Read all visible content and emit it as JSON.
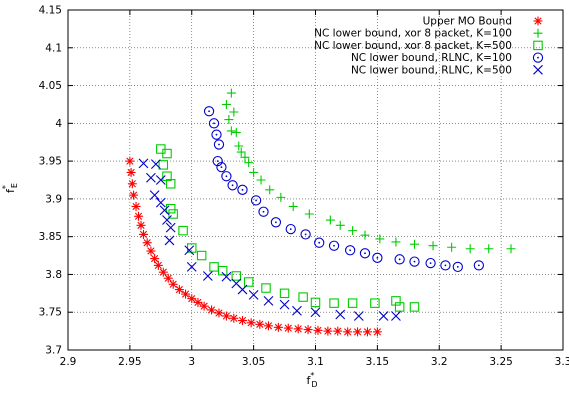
{
  "chart_data": {
    "type": "scatter",
    "xlabel": "f*D",
    "ylabel": "f*E",
    "xlabel_main": "f",
    "xlabel_sup": "*",
    "xlabel_sub": "D",
    "ylabel_main": "f",
    "ylabel_sup": "*",
    "ylabel_sub": "E",
    "xlim": [
      2.9,
      3.3
    ],
    "ylim": [
      3.7,
      4.15
    ],
    "xticks": [
      2.9,
      2.95,
      3.0,
      3.05,
      3.1,
      3.15,
      3.2,
      3.25,
      3.3
    ],
    "xtick_labels": [
      "2.9",
      "2.95",
      "3",
      "3.05",
      "3.1",
      "3.15",
      "3.2",
      "3.25",
      "3.3"
    ],
    "yticks": [
      3.7,
      3.75,
      3.8,
      3.85,
      3.9,
      3.95,
      4.0,
      4.05,
      4.1,
      4.15
    ],
    "ytick_labels": [
      "3.7",
      "3.75",
      "3.8",
      "3.85",
      "3.9",
      "3.95",
      "4",
      "4.05",
      "4.1",
      "4.15"
    ],
    "grid": true,
    "legend_position": "top-right",
    "series": [
      {
        "name": "Upper MO Bound",
        "marker": "asterisk",
        "color": "#ff0000",
        "points": [
          [
            2.95,
            3.95
          ],
          [
            2.951,
            3.935
          ],
          [
            2.952,
            3.92
          ],
          [
            2.953,
            3.905
          ],
          [
            2.955,
            3.89
          ],
          [
            2.957,
            3.877
          ],
          [
            2.959,
            3.865
          ],
          [
            2.961,
            3.853
          ],
          [
            2.964,
            3.842
          ],
          [
            2.967,
            3.831
          ],
          [
            2.97,
            3.821
          ],
          [
            2.973,
            3.812
          ],
          [
            2.977,
            3.803
          ],
          [
            2.981,
            3.795
          ],
          [
            2.985,
            3.787
          ],
          [
            2.99,
            3.78
          ],
          [
            2.995,
            3.774
          ],
          [
            3.0,
            3.768
          ],
          [
            3.005,
            3.763
          ],
          [
            3.01,
            3.758
          ],
          [
            3.016,
            3.753
          ],
          [
            3.022,
            3.749
          ],
          [
            3.028,
            3.745
          ],
          [
            3.034,
            3.742
          ],
          [
            3.041,
            3.739
          ],
          [
            3.048,
            3.736
          ],
          [
            3.055,
            3.734
          ],
          [
            3.062,
            3.732
          ],
          [
            3.07,
            3.73
          ],
          [
            3.078,
            3.729
          ],
          [
            3.086,
            3.728
          ],
          [
            3.094,
            3.727
          ],
          [
            3.102,
            3.726
          ],
          [
            3.11,
            3.725
          ],
          [
            3.118,
            3.725
          ],
          [
            3.126,
            3.724
          ],
          [
            3.134,
            3.724
          ],
          [
            3.142,
            3.724
          ],
          [
            3.15,
            3.724
          ]
        ]
      },
      {
        "name": "NC lower bound, xor 8 packet, K=100",
        "marker": "plus",
        "color": "#00cc00",
        "points": [
          [
            3.028,
            4.025
          ],
          [
            3.032,
            4.04
          ],
          [
            3.03,
            4.005
          ],
          [
            3.034,
            4.015
          ],
          [
            3.032,
            3.99
          ],
          [
            3.036,
            3.988
          ],
          [
            3.038,
            3.97
          ],
          [
            3.04,
            3.962
          ],
          [
            3.043,
            3.955
          ],
          [
            3.046,
            3.948
          ],
          [
            3.05,
            3.935
          ],
          [
            3.056,
            3.925
          ],
          [
            3.063,
            3.912
          ],
          [
            3.072,
            3.902
          ],
          [
            3.082,
            3.89
          ],
          [
            3.095,
            3.88
          ],
          [
            3.112,
            3.872
          ],
          [
            3.12,
            3.865
          ],
          [
            3.13,
            3.858
          ],
          [
            3.14,
            3.852
          ],
          [
            3.152,
            3.847
          ],
          [
            3.165,
            3.843
          ],
          [
            3.18,
            3.84
          ],
          [
            3.195,
            3.838
          ],
          [
            3.21,
            3.836
          ],
          [
            3.225,
            3.834
          ],
          [
            3.24,
            3.834
          ],
          [
            3.258,
            3.834
          ]
        ]
      },
      {
        "name": "NC lower bound, xor 8 packet, K=500",
        "marker": "square",
        "color": "#00cc00",
        "points": [
          [
            2.975,
            3.966
          ],
          [
            2.98,
            3.96
          ],
          [
            2.977,
            3.945
          ],
          [
            2.98,
            3.93
          ],
          [
            2.983,
            3.92
          ],
          [
            2.983,
            3.887
          ],
          [
            2.985,
            3.88
          ],
          [
            2.993,
            3.858
          ],
          [
            3.0,
            3.835
          ],
          [
            3.008,
            3.825
          ],
          [
            3.018,
            3.81
          ],
          [
            3.025,
            3.805
          ],
          [
            3.036,
            3.798
          ],
          [
            3.046,
            3.79
          ],
          [
            3.06,
            3.782
          ],
          [
            3.075,
            3.775
          ],
          [
            3.09,
            3.77
          ],
          [
            3.1,
            3.763
          ],
          [
            3.115,
            3.762
          ],
          [
            3.13,
            3.762
          ],
          [
            3.148,
            3.762
          ],
          [
            3.165,
            3.765
          ],
          [
            3.168,
            3.757
          ],
          [
            3.18,
            3.757
          ]
        ]
      },
      {
        "name": "NC lower bound, RLNC, K=100",
        "marker": "circle",
        "color": "#0000cc",
        "points": [
          [
            3.014,
            4.016
          ],
          [
            3.018,
            4.0
          ],
          [
            3.02,
            3.985
          ],
          [
            3.022,
            3.972
          ],
          [
            3.021,
            3.95
          ],
          [
            3.024,
            3.942
          ],
          [
            3.028,
            3.93
          ],
          [
            3.033,
            3.918
          ],
          [
            3.041,
            3.912
          ],
          [
            3.052,
            3.898
          ],
          [
            3.058,
            3.883
          ],
          [
            3.068,
            3.869
          ],
          [
            3.08,
            3.86
          ],
          [
            3.092,
            3.853
          ],
          [
            3.103,
            3.842
          ],
          [
            3.115,
            3.838
          ],
          [
            3.128,
            3.832
          ],
          [
            3.14,
            3.828
          ],
          [
            3.15,
            3.822
          ],
          [
            3.168,
            3.82
          ],
          [
            3.18,
            3.817
          ],
          [
            3.193,
            3.815
          ],
          [
            3.205,
            3.812
          ],
          [
            3.215,
            3.81
          ],
          [
            3.232,
            3.812
          ]
        ]
      },
      {
        "name": "NC lower bound, RLNC, K=500",
        "marker": "x",
        "color": "#0000cc",
        "points": [
          [
            2.961,
            3.947
          ],
          [
            2.971,
            3.946
          ],
          [
            2.967,
            3.928
          ],
          [
            2.975,
            3.925
          ],
          [
            2.97,
            3.905
          ],
          [
            2.975,
            3.895
          ],
          [
            2.978,
            3.885
          ],
          [
            2.98,
            3.872
          ],
          [
            2.983,
            3.862
          ],
          [
            2.982,
            3.845
          ],
          [
            2.998,
            3.832
          ],
          [
            3.0,
            3.81
          ],
          [
            3.013,
            3.798
          ],
          [
            3.028,
            3.797
          ],
          [
            3.036,
            3.788
          ],
          [
            3.041,
            3.78
          ],
          [
            3.05,
            3.773
          ],
          [
            3.062,
            3.765
          ],
          [
            3.075,
            3.76
          ],
          [
            3.085,
            3.752
          ],
          [
            3.1,
            3.75
          ],
          [
            3.12,
            3.747
          ],
          [
            3.135,
            3.745
          ],
          [
            3.155,
            3.745
          ],
          [
            3.165,
            3.745
          ]
        ]
      }
    ]
  }
}
